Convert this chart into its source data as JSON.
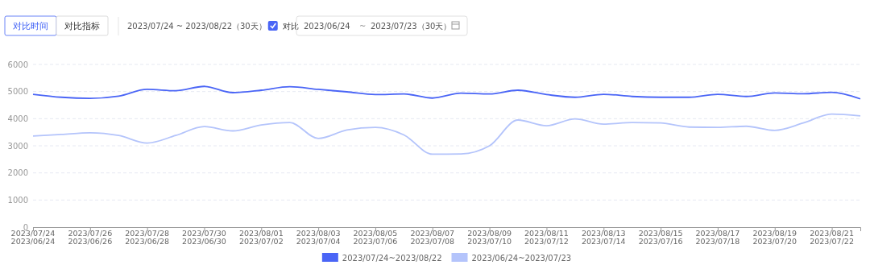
{
  "chart_data": {
    "type": "line",
    "annotations": [
      "对比时间",
      "对比指标",
      "2023/07/24 ~ 2023/08/22（30天）",
      "对比",
      "2023/06/24",
      "~",
      "2023/07/23（30天）"
    ],
    "categories": [
      "2023/07/24\n2023/06/24",
      null,
      "2023/07/26\n2023/06/26",
      null,
      "2023/07/28\n2023/06/28",
      null,
      "2023/07/30\n2023/06/30",
      null,
      "2023/08/01\n2023/07/02",
      null,
      "2023/08/03\n2023/07/04",
      null,
      "2023/08/05\n2023/07/06",
      null,
      "2023/08/07\n2023/07/08",
      null,
      "2023/08/09\n2023/07/10",
      null,
      "2023/08/11\n2023/07/12",
      null,
      "2023/08/13\n2023/07/14",
      null,
      "2023/08/15\n2023/07/16",
      null,
      "2023/08/17\n2023/07/18",
      null,
      "2023/08/19\n2023/07/20",
      null,
      "2023/08/21\n2023/07/22",
      null
    ],
    "series": [
      {
        "name": "2023/07/24~2023/08/22",
        "color": "#4a65f6",
        "values": [
          4900,
          4790,
          4750,
          4830,
          5080,
          5030,
          5190,
          4960,
          5050,
          5180,
          5080,
          4990,
          4890,
          4910,
          4760,
          4940,
          4910,
          5050,
          4890,
          4790,
          4900,
          4820,
          4790,
          4790,
          4900,
          4820,
          4950,
          4920,
          4970,
          4730
        ]
      },
      {
        "name": "2023/06/24~2023/07/23",
        "color": "#b4c4fb",
        "values": [
          3360,
          3420,
          3480,
          3380,
          3100,
          3380,
          3710,
          3550,
          3770,
          3860,
          3270,
          3580,
          3680,
          3400,
          2690,
          2700,
          3000,
          3950,
          3740,
          3990,
          3800,
          3860,
          3840,
          3690,
          3680,
          3720,
          3570,
          3840,
          4170,
          4100
        ]
      }
    ],
    "ylim": [
      0,
      6000
    ],
    "yticks": [
      0,
      1000,
      2000,
      3000,
      4000,
      5000,
      6000
    ],
    "grid": "y",
    "legend": "bottom",
    "marker": "none",
    "line_style": "solid"
  }
}
